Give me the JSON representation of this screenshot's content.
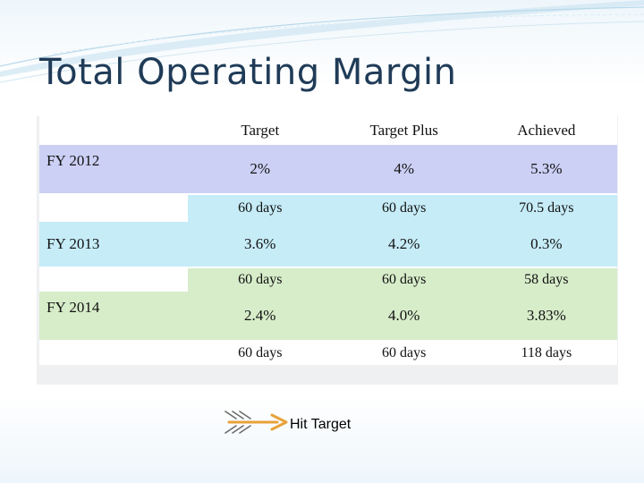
{
  "title": "Total Operating Margin",
  "table": {
    "headers": [
      "Target",
      "Target Plus",
      "Achieved"
    ],
    "rows": [
      {
        "label": "FY 2012",
        "pct": [
          "2%",
          "4%",
          "5.3%"
        ],
        "days": [
          "60 days",
          "60 days",
          "70.5 days"
        ],
        "color": "#ccd0f5"
      },
      {
        "label": "FY 2013",
        "pct": [
          "3.6%",
          "4.2%",
          "0.3%"
        ],
        "days": [
          "60 days",
          "60 days",
          "58 days"
        ],
        "color": "#c6ecf8"
      },
      {
        "label": "FY 2014",
        "pct": [
          "2.4%",
          "4.0%",
          "3.83%"
        ],
        "days": [
          "60 days",
          "60 days",
          "118 days"
        ],
        "color": "#d7edca"
      }
    ]
  },
  "legend": {
    "icon": "arrow-icon",
    "label": "Hit Target",
    "arrow_color": "#e8a23a"
  }
}
